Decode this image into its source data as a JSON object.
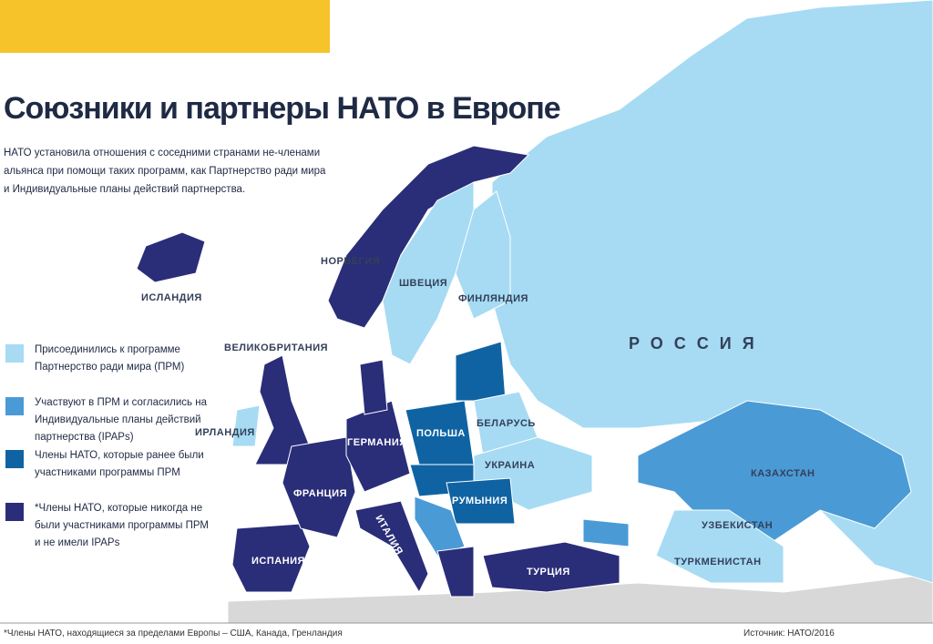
{
  "title": "Союзники и партнеры НАТО в Европе",
  "subtitle": "НАТО установила отношения с соседними странами не-членами альянса при помощи таких программ, как Партнерство ради мира и Индивидуальные планы действий партнерства.",
  "legend": [
    {
      "label": "Присоединились к программе Партнерство ради мира (ПРМ)",
      "color": "#a6dbf3"
    },
    {
      "label": "Участвуют в ПРМ и согласились на Индивидуальные планы действий партнерства (IPAPs)",
      "color": "#4a9ad6"
    },
    {
      "label": "Члены НАТО, которые ранее были участниками программы ПРМ",
      "color": "#0f63a3"
    },
    {
      "label": "*Члены НАТО, которые никогда не были участниками программы ПРМ и не имели IPAPs",
      "color": "#2a2d78"
    }
  ],
  "countries": [
    "НОРВЕГИЯ",
    "ИСЛАНДИЯ",
    "ШВЕЦИЯ",
    "ФИНЛЯНДИЯ",
    "РОССИЯ",
    "ВЕЛИКОБРИТАНИЯ",
    "ИРЛАНДИЯ",
    "ГЕРМАНИЯ",
    "ПОЛЬША",
    "БЕЛАРУСЬ",
    "УКРАИНА",
    "ФРАНЦИЯ",
    "РУМЫНИЯ",
    "ИТАЛИЯ",
    "ИСПАНИЯ",
    "ТУРЦИЯ",
    "КАЗАХСТАН",
    "УЗБЕКИСТАН",
    "ТУРКМЕНИСТАН"
  ],
  "footnote": "*Члены НАТО, находящиеся за пределами Европы – США, Канада, Гренландия",
  "source": "Источник: НАТО/2016"
}
